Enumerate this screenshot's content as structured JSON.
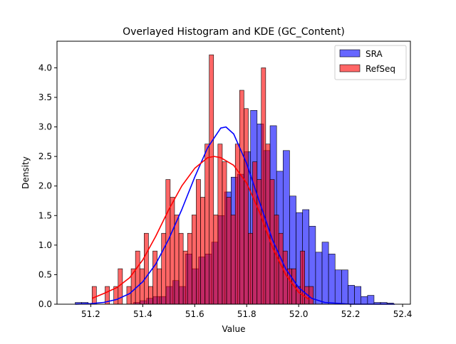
{
  "chart_data": {
    "type": "bar",
    "title": "Overlayed Histogram and KDE (GC_Content)",
    "xlabel": "Value",
    "ylabel": "Density",
    "xlim": [
      51.07,
      52.43
    ],
    "ylim": [
      0,
      4.45
    ],
    "xticks": [
      "51.2",
      "51.4",
      "51.6",
      "51.8",
      "52.0",
      "52.2",
      "52.4"
    ],
    "yticks": [
      "0.0",
      "0.5",
      "1.0",
      "1.5",
      "2.0",
      "2.5",
      "3.0",
      "3.5",
      "4.0"
    ],
    "legend_position": "top-right",
    "grid": false,
    "series": [
      {
        "name": "SRA",
        "color": "#0000ff",
        "kde_color": "#0000ff",
        "bin_width": 0.025,
        "bin_start": 51.14,
        "densities": [
          0.03,
          0.03,
          0,
          0,
          0,
          0,
          0,
          0,
          0,
          0.03,
          0.06,
          0.1,
          0.13,
          0.13,
          0.3,
          0.4,
          0.3,
          0.85,
          0.6,
          0.8,
          0.85,
          1.05,
          1.5,
          1.9,
          2.15,
          2.2,
          2.58,
          3.28,
          3.05,
          2.6,
          3.02,
          2.25,
          2.6,
          1.83,
          1.55,
          1.6,
          1.32,
          0.88,
          1.05,
          0.85,
          0.58,
          0.58,
          0.32,
          0.3,
          0.13,
          0.15,
          0.03,
          0.03,
          0.02
        ],
        "kde": {
          "x": [
            51.14,
            51.2,
            51.25,
            51.3,
            51.35,
            51.4,
            51.45,
            51.5,
            51.55,
            51.6,
            51.65,
            51.7,
            51.72,
            51.75,
            51.8,
            51.85,
            51.9,
            51.95,
            52.0,
            52.05,
            52.1,
            52.2,
            52.3,
            52.37
          ],
          "y": [
            0.0,
            0.01,
            0.03,
            0.08,
            0.18,
            0.38,
            0.68,
            1.1,
            1.6,
            2.15,
            2.65,
            2.98,
            3.0,
            2.88,
            2.38,
            1.72,
            1.08,
            0.6,
            0.28,
            0.1,
            0.03,
            0.0,
            0.0,
            0.0
          ]
        }
      },
      {
        "name": "RefSeq",
        "color": "#ff0000",
        "kde_color": "#ff0000",
        "bin_width": 0.0167,
        "bin_start": 51.205,
        "densities": [
          0.3,
          0,
          0,
          0.3,
          0,
          0.3,
          0.6,
          0,
          0.3,
          0.6,
          0.9,
          0.6,
          1.2,
          0.3,
          0.9,
          0.6,
          1.2,
          2.11,
          1.81,
          1.51,
          1.2,
          0.9,
          1.2,
          1.51,
          2.11,
          1.81,
          2.71,
          4.22,
          1.51,
          2.71,
          2.41,
          1.81,
          1.51,
          2.71,
          3.62,
          3.31,
          1.2,
          2.41,
          2.11,
          4.0,
          2.71,
          2.11,
          1.51,
          1.2,
          0.9,
          0.6,
          0.6,
          0.3,
          0.9,
          0.3,
          0.3
        ],
        "kde": {
          "x": [
            51.205,
            51.25,
            51.3,
            51.35,
            51.4,
            51.45,
            51.5,
            51.55,
            51.6,
            51.65,
            51.675,
            51.7,
            51.75,
            51.8,
            51.85,
            51.9,
            51.95,
            52.0,
            52.04
          ],
          "y": [
            0.1,
            0.18,
            0.28,
            0.45,
            0.75,
            1.15,
            1.6,
            2.0,
            2.3,
            2.48,
            2.5,
            2.48,
            2.35,
            2.05,
            1.55,
            0.95,
            0.5,
            0.2,
            0.08
          ]
        }
      }
    ]
  }
}
